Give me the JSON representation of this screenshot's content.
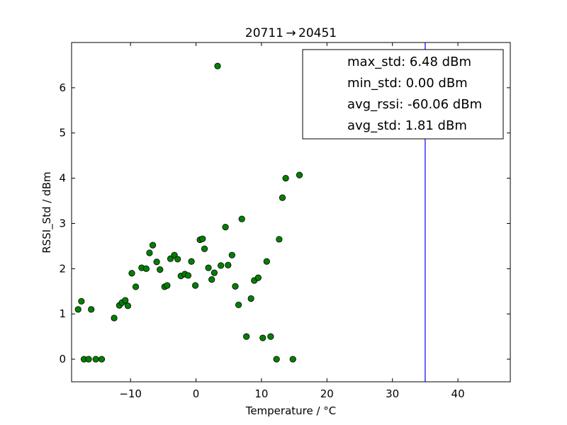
{
  "chart_data": {
    "type": "scatter",
    "title": "20711 → 20451",
    "xlabel": "Temperature / °C",
    "ylabel": "RSSI_Std / dBm",
    "xlim": [
      -19,
      48
    ],
    "ylim": [
      -0.5,
      7
    ],
    "xticks": [
      -10,
      0,
      10,
      20,
      30,
      40
    ],
    "xtick_labels": [
      "−10",
      "0",
      "10",
      "20",
      "30",
      "40"
    ],
    "yticks": [
      0,
      1,
      2,
      3,
      4,
      5,
      6
    ],
    "ytick_labels": [
      "0",
      "1",
      "2",
      "3",
      "4",
      "5",
      "6"
    ],
    "grid": false,
    "marker_color": "#008000",
    "vline": {
      "x": 35,
      "color": "#0000ff"
    },
    "legend_position": "top-right",
    "legend": [
      "max_std: 6.48 dBm",
      "min_std: 0.00 dBm",
      "avg_rssi: -60.06 dBm",
      "avg_std: 1.81 dBm"
    ],
    "points": [
      [
        -18.0,
        1.1
      ],
      [
        -17.5,
        1.28
      ],
      [
        -17.1,
        0.0
      ],
      [
        -16.4,
        0.0
      ],
      [
        -16.0,
        1.1
      ],
      [
        -15.3,
        0.0
      ],
      [
        -14.4,
        0.0
      ],
      [
        -12.5,
        0.91
      ],
      [
        -11.7,
        1.19
      ],
      [
        -11.3,
        1.25
      ],
      [
        -10.8,
        1.3
      ],
      [
        -10.4,
        1.18
      ],
      [
        -9.8,
        1.9
      ],
      [
        -9.2,
        1.6
      ],
      [
        -8.3,
        2.02
      ],
      [
        -7.6,
        2.0
      ],
      [
        -7.1,
        2.35
      ],
      [
        -6.6,
        2.52
      ],
      [
        -6.0,
        2.15
      ],
      [
        -5.5,
        1.98
      ],
      [
        -4.8,
        1.6
      ],
      [
        -4.4,
        1.63
      ],
      [
        -3.9,
        2.22
      ],
      [
        -3.3,
        2.3
      ],
      [
        -2.8,
        2.21
      ],
      [
        -2.3,
        1.84
      ],
      [
        -1.7,
        1.88
      ],
      [
        -1.2,
        1.85
      ],
      [
        -0.7,
        2.16
      ],
      [
        -0.1,
        1.63
      ],
      [
        0.6,
        2.64
      ],
      [
        1.0,
        2.66
      ],
      [
        1.3,
        2.44
      ],
      [
        1.9,
        2.02
      ],
      [
        2.4,
        1.76
      ],
      [
        2.8,
        1.91
      ],
      [
        3.3,
        6.48
      ],
      [
        3.8,
        2.07
      ],
      [
        4.5,
        2.92
      ],
      [
        4.9,
        2.08
      ],
      [
        5.5,
        2.3
      ],
      [
        6.0,
        1.61
      ],
      [
        6.5,
        1.2
      ],
      [
        7.0,
        3.1
      ],
      [
        7.7,
        0.5
      ],
      [
        8.4,
        1.34
      ],
      [
        8.9,
        1.74
      ],
      [
        9.5,
        1.8
      ],
      [
        10.2,
        0.47
      ],
      [
        10.8,
        2.16
      ],
      [
        11.4,
        0.5
      ],
      [
        12.3,
        0.0
      ],
      [
        12.7,
        2.65
      ],
      [
        13.2,
        3.57
      ],
      [
        13.7,
        4.0
      ],
      [
        14.8,
        0.0
      ],
      [
        15.8,
        4.07
      ]
    ]
  }
}
